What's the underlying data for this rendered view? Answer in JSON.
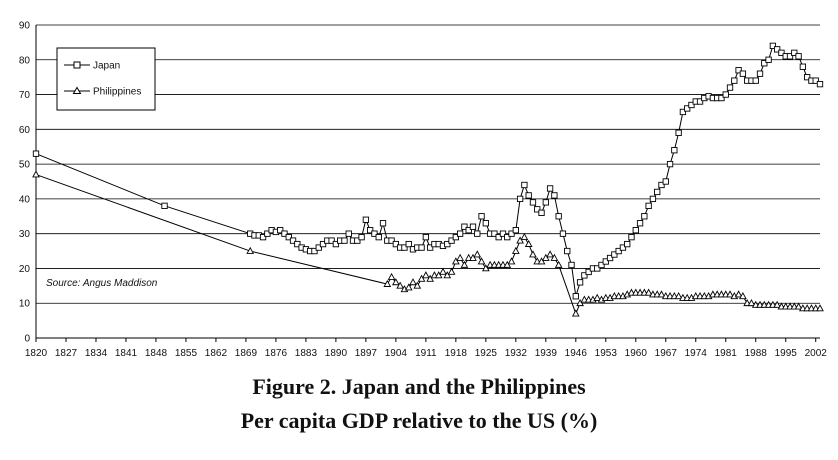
{
  "chart_data": {
    "type": "line",
    "title": "Figure 2. Japan and the Philippines",
    "subtitle": "Per capita GDP relative to the US (%)",
    "source": "Source: Angus Maddison",
    "xlabel": "",
    "ylabel": "",
    "xlim": [
      1820,
      2003
    ],
    "ylim": [
      0,
      90
    ],
    "yticks": [
      0,
      10,
      20,
      30,
      40,
      50,
      60,
      70,
      80,
      90
    ],
    "xticks": [
      1820,
      1827,
      1834,
      1841,
      1848,
      1855,
      1862,
      1869,
      1876,
      1883,
      1890,
      1897,
      1904,
      1911,
      1918,
      1925,
      1932,
      1939,
      1946,
      1953,
      1960,
      1967,
      1974,
      1981,
      1988,
      1995,
      2002
    ],
    "grid": "horizontal",
    "legend_position": "top-left",
    "series": [
      {
        "name": "Japan",
        "marker": "square",
        "points": [
          [
            1820,
            53
          ],
          [
            1850,
            38
          ],
          [
            1870,
            30
          ],
          [
            1871,
            29.5
          ],
          [
            1872,
            29.5
          ],
          [
            1873,
            29
          ],
          [
            1874,
            30
          ],
          [
            1875,
            31
          ],
          [
            1876,
            30.5
          ],
          [
            1877,
            31
          ],
          [
            1878,
            30
          ],
          [
            1879,
            29
          ],
          [
            1880,
            28
          ],
          [
            1881,
            27
          ],
          [
            1882,
            26
          ],
          [
            1883,
            25.5
          ],
          [
            1884,
            25
          ],
          [
            1885,
            25
          ],
          [
            1886,
            26
          ],
          [
            1887,
            27
          ],
          [
            1888,
            28
          ],
          [
            1889,
            28
          ],
          [
            1890,
            27
          ],
          [
            1891,
            28
          ],
          [
            1892,
            28
          ],
          [
            1893,
            30
          ],
          [
            1894,
            28
          ],
          [
            1895,
            28
          ],
          [
            1896,
            29
          ],
          [
            1897,
            34
          ],
          [
            1898,
            31
          ],
          [
            1899,
            30
          ],
          [
            1900,
            29
          ],
          [
            1901,
            33
          ],
          [
            1902,
            28
          ],
          [
            1903,
            28
          ],
          [
            1904,
            27
          ],
          [
            1905,
            26
          ],
          [
            1906,
            26
          ],
          [
            1907,
            27
          ],
          [
            1908,
            25.5
          ],
          [
            1909,
            26
          ],
          [
            1910,
            26
          ],
          [
            1911,
            29
          ],
          [
            1912,
            26
          ],
          [
            1913,
            27
          ],
          [
            1914,
            27
          ],
          [
            1915,
            26.5
          ],
          [
            1916,
            27
          ],
          [
            1917,
            28
          ],
          [
            1918,
            29
          ],
          [
            1919,
            30
          ],
          [
            1920,
            32
          ],
          [
            1921,
            31
          ],
          [
            1922,
            32
          ],
          [
            1923,
            30
          ],
          [
            1924,
            35
          ],
          [
            1925,
            33
          ],
          [
            1926,
            30
          ],
          [
            1927,
            30
          ],
          [
            1928,
            29
          ],
          [
            1929,
            30
          ],
          [
            1930,
            29
          ],
          [
            1931,
            30
          ],
          [
            1932,
            31
          ],
          [
            1933,
            40
          ],
          [
            1934,
            44
          ],
          [
            1935,
            41
          ],
          [
            1936,
            39
          ],
          [
            1937,
            37
          ],
          [
            1938,
            36
          ],
          [
            1939,
            39
          ],
          [
            1940,
            43
          ],
          [
            1941,
            41
          ],
          [
            1942,
            35
          ],
          [
            1943,
            30
          ],
          [
            1944,
            25
          ],
          [
            1945,
            21
          ],
          [
            1946,
            12
          ],
          [
            1947,
            16
          ],
          [
            1948,
            18
          ],
          [
            1949,
            19
          ],
          [
            1950,
            20
          ],
          [
            1951,
            20
          ],
          [
            1952,
            21
          ],
          [
            1953,
            22
          ],
          [
            1954,
            23
          ],
          [
            1955,
            24
          ],
          [
            1956,
            25
          ],
          [
            1957,
            26
          ],
          [
            1958,
            27
          ],
          [
            1959,
            29
          ],
          [
            1960,
            31
          ],
          [
            1961,
            33
          ],
          [
            1962,
            35
          ],
          [
            1963,
            38
          ],
          [
            1964,
            40
          ],
          [
            1965,
            42
          ],
          [
            1966,
            44
          ],
          [
            1967,
            45
          ],
          [
            1968,
            50
          ],
          [
            1969,
            54
          ],
          [
            1970,
            59
          ],
          [
            1971,
            65
          ],
          [
            1972,
            66
          ],
          [
            1973,
            67
          ],
          [
            1974,
            68
          ],
          [
            1975,
            68
          ],
          [
            1976,
            69
          ],
          [
            1977,
            69.5
          ],
          [
            1978,
            69
          ],
          [
            1979,
            69
          ],
          [
            1980,
            69
          ],
          [
            1981,
            70
          ],
          [
            1982,
            72
          ],
          [
            1983,
            74
          ],
          [
            1984,
            77
          ],
          [
            1985,
            76
          ],
          [
            1986,
            74
          ],
          [
            1987,
            74
          ],
          [
            1988,
            74
          ],
          [
            1989,
            76
          ],
          [
            1990,
            79
          ],
          [
            1991,
            80
          ],
          [
            1992,
            84
          ],
          [
            1993,
            83
          ],
          [
            1994,
            82
          ],
          [
            1995,
            81
          ],
          [
            1996,
            81
          ],
          [
            1997,
            82
          ],
          [
            1998,
            81
          ],
          [
            1999,
            78
          ],
          [
            2000,
            75
          ],
          [
            2001,
            74
          ],
          [
            2002,
            74
          ],
          [
            2003,
            73
          ]
        ]
      },
      {
        "name": "Philippines",
        "marker": "triangle",
        "points": [
          [
            1820,
            47
          ],
          [
            1870,
            25
          ],
          [
            1902,
            15.5
          ],
          [
            1903,
            17.5
          ],
          [
            1904,
            16
          ],
          [
            1905,
            15
          ],
          [
            1906,
            14
          ],
          [
            1907,
            14.5
          ],
          [
            1908,
            16
          ],
          [
            1909,
            15
          ],
          [
            1910,
            17
          ],
          [
            1911,
            18
          ],
          [
            1912,
            17
          ],
          [
            1913,
            18
          ],
          [
            1914,
            18
          ],
          [
            1915,
            19
          ],
          [
            1916,
            18
          ],
          [
            1917,
            19
          ],
          [
            1918,
            22
          ],
          [
            1919,
            23
          ],
          [
            1920,
            21
          ],
          [
            1921,
            23
          ],
          [
            1922,
            23
          ],
          [
            1923,
            24
          ],
          [
            1924,
            22
          ],
          [
            1925,
            20
          ],
          [
            1926,
            21
          ],
          [
            1927,
            21
          ],
          [
            1928,
            21
          ],
          [
            1929,
            21
          ],
          [
            1930,
            21
          ],
          [
            1931,
            22
          ],
          [
            1932,
            25
          ],
          [
            1933,
            28
          ],
          [
            1934,
            29
          ],
          [
            1935,
            27
          ],
          [
            1936,
            24
          ],
          [
            1937,
            22
          ],
          [
            1938,
            22
          ],
          [
            1939,
            23
          ],
          [
            1940,
            24
          ],
          [
            1941,
            23
          ],
          [
            1942,
            21
          ],
          [
            1946,
            7
          ],
          [
            1947,
            10
          ],
          [
            1948,
            11
          ],
          [
            1949,
            11
          ],
          [
            1950,
            11
          ],
          [
            1951,
            11.5
          ],
          [
            1952,
            11
          ],
          [
            1953,
            11.5
          ],
          [
            1954,
            11.5
          ],
          [
            1955,
            12
          ],
          [
            1956,
            12
          ],
          [
            1957,
            12
          ],
          [
            1958,
            12.5
          ],
          [
            1959,
            13
          ],
          [
            1960,
            13
          ],
          [
            1961,
            13
          ],
          [
            1962,
            13
          ],
          [
            1963,
            13
          ],
          [
            1964,
            12.5
          ],
          [
            1965,
            12.5
          ],
          [
            1966,
            12.5
          ],
          [
            1967,
            12
          ],
          [
            1968,
            12
          ],
          [
            1969,
            12
          ],
          [
            1970,
            12
          ],
          [
            1971,
            11.5
          ],
          [
            1972,
            11.5
          ],
          [
            1973,
            11.5
          ],
          [
            1974,
            12
          ],
          [
            1975,
            12
          ],
          [
            1976,
            12
          ],
          [
            1977,
            12
          ],
          [
            1978,
            12.5
          ],
          [
            1979,
            12.5
          ],
          [
            1980,
            12.5
          ],
          [
            1981,
            12.5
          ],
          [
            1982,
            12.5
          ],
          [
            1983,
            12
          ],
          [
            1984,
            12.5
          ],
          [
            1985,
            12
          ],
          [
            1986,
            10
          ],
          [
            1987,
            10
          ],
          [
            1988,
            9.5
          ],
          [
            1989,
            9.5
          ],
          [
            1990,
            9.5
          ],
          [
            1991,
            9.5
          ],
          [
            1992,
            9.5
          ],
          [
            1993,
            9.5
          ],
          [
            1994,
            9
          ],
          [
            1995,
            9
          ],
          [
            1996,
            9
          ],
          [
            1997,
            9
          ],
          [
            1998,
            9
          ],
          [
            1999,
            8.5
          ],
          [
            2000,
            8.5
          ],
          [
            2001,
            8.5
          ],
          [
            2002,
            8.5
          ],
          [
            2003,
            8.5
          ]
        ]
      }
    ]
  }
}
